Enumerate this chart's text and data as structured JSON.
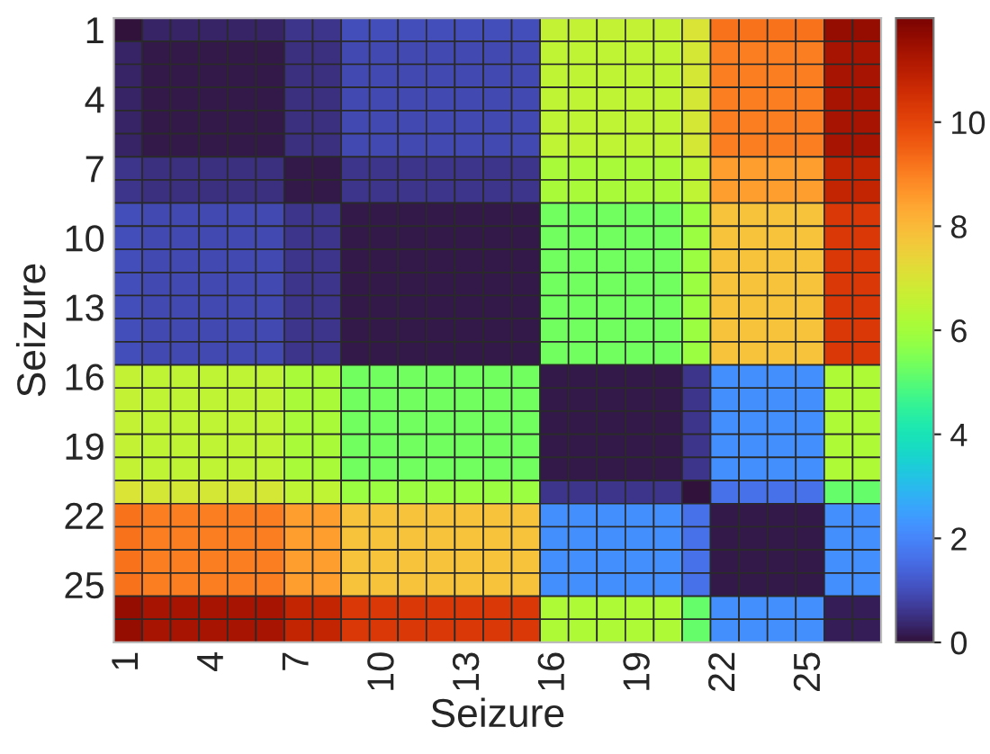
{
  "chart_data": {
    "type": "heatmap",
    "xlabel": "Seizure",
    "ylabel": "Seizure",
    "categories": [
      "1",
      null,
      null,
      "4",
      null,
      null,
      "7",
      null,
      null,
      "10",
      null,
      null,
      "13",
      null,
      null,
      "16",
      null,
      null,
      "19",
      null,
      null,
      "22",
      null,
      null,
      "25",
      null,
      null
    ],
    "y_categories": [
      "1",
      null,
      null,
      "4",
      null,
      null,
      "7",
      null,
      null,
      "10",
      null,
      null,
      "13",
      null,
      null,
      "16",
      null,
      null,
      "19",
      null,
      null,
      "22",
      null,
      null,
      "25",
      null,
      null
    ],
    "cells": [
      [
        0,
        0.3,
        0.3,
        0.3,
        0.3,
        0.3,
        0.6,
        0.6,
        1.0,
        1.0,
        1.0,
        1.0,
        1.0,
        1.0,
        1.0,
        6.6,
        6.6,
        6.6,
        6.6,
        6.6,
        7.0,
        9.2,
        9.2,
        9.2,
        9.2,
        11.6,
        11.6
      ],
      [
        0.3,
        0.1,
        0.1,
        0.1,
        0.1,
        0.1,
        0.5,
        0.5,
        0.9,
        0.9,
        0.9,
        0.9,
        0.9,
        0.9,
        0.9,
        6.5,
        6.5,
        6.5,
        6.5,
        6.5,
        6.9,
        9.0,
        9.0,
        9.0,
        9.0,
        11.3,
        11.3
      ],
      [
        0.3,
        0.1,
        0.1,
        0.1,
        0.1,
        0.1,
        0.5,
        0.5,
        0.9,
        0.9,
        0.9,
        0.9,
        0.9,
        0.9,
        0.9,
        6.5,
        6.5,
        6.5,
        6.5,
        6.5,
        6.9,
        9.0,
        9.0,
        9.0,
        9.0,
        11.3,
        11.3
      ],
      [
        0.3,
        0.1,
        0.1,
        0.1,
        0.1,
        0.1,
        0.5,
        0.5,
        0.9,
        0.9,
        0.9,
        0.9,
        0.9,
        0.9,
        0.9,
        6.5,
        6.5,
        6.5,
        6.5,
        6.5,
        6.9,
        9.0,
        9.0,
        9.0,
        9.0,
        11.3,
        11.3
      ],
      [
        0.3,
        0.1,
        0.1,
        0.1,
        0.1,
        0.1,
        0.5,
        0.5,
        0.9,
        0.9,
        0.9,
        0.9,
        0.9,
        0.9,
        0.9,
        6.5,
        6.5,
        6.5,
        6.5,
        6.5,
        6.9,
        9.0,
        9.0,
        9.0,
        9.0,
        11.3,
        11.3
      ],
      [
        0.3,
        0.1,
        0.1,
        0.1,
        0.1,
        0.1,
        0.5,
        0.5,
        0.9,
        0.9,
        0.9,
        0.9,
        0.9,
        0.9,
        0.9,
        6.5,
        6.5,
        6.5,
        6.5,
        6.5,
        6.9,
        9.0,
        9.0,
        9.0,
        9.0,
        11.3,
        11.3
      ],
      [
        0.6,
        0.5,
        0.5,
        0.5,
        0.5,
        0.5,
        0.1,
        0.1,
        0.6,
        0.6,
        0.6,
        0.6,
        0.6,
        0.6,
        0.6,
        6.1,
        6.1,
        6.1,
        6.1,
        6.1,
        6.5,
        8.5,
        8.5,
        8.5,
        8.5,
        10.8,
        10.8
      ],
      [
        0.6,
        0.5,
        0.5,
        0.5,
        0.5,
        0.5,
        0.1,
        0.1,
        0.6,
        0.6,
        0.6,
        0.6,
        0.6,
        0.6,
        0.6,
        6.1,
        6.1,
        6.1,
        6.1,
        6.1,
        6.5,
        8.5,
        8.5,
        8.5,
        8.5,
        10.8,
        10.8
      ],
      [
        1.0,
        0.9,
        0.9,
        0.9,
        0.9,
        0.9,
        0.6,
        0.6,
        0.1,
        0.1,
        0.1,
        0.1,
        0.1,
        0.1,
        0.1,
        5.3,
        5.3,
        5.3,
        5.3,
        5.3,
        5.9,
        7.8,
        7.8,
        7.8,
        7.8,
        10.3,
        10.3
      ],
      [
        1.0,
        0.9,
        0.9,
        0.9,
        0.9,
        0.9,
        0.6,
        0.6,
        0.1,
        0.1,
        0.1,
        0.1,
        0.1,
        0.1,
        0.1,
        5.3,
        5.3,
        5.3,
        5.3,
        5.3,
        5.9,
        7.8,
        7.8,
        7.8,
        7.8,
        10.3,
        10.3
      ],
      [
        1.0,
        0.9,
        0.9,
        0.9,
        0.9,
        0.9,
        0.6,
        0.6,
        0.1,
        0.1,
        0.1,
        0.1,
        0.1,
        0.1,
        0.1,
        5.3,
        5.3,
        5.3,
        5.3,
        5.3,
        5.9,
        7.8,
        7.8,
        7.8,
        7.8,
        10.3,
        10.3
      ],
      [
        1.0,
        0.9,
        0.9,
        0.9,
        0.9,
        0.9,
        0.6,
        0.6,
        0.1,
        0.1,
        0.1,
        0.1,
        0.1,
        0.1,
        0.1,
        5.3,
        5.3,
        5.3,
        5.3,
        5.3,
        5.9,
        7.8,
        7.8,
        7.8,
        7.8,
        10.3,
        10.3
      ],
      [
        1.0,
        0.9,
        0.9,
        0.9,
        0.9,
        0.9,
        0.6,
        0.6,
        0.1,
        0.1,
        0.1,
        0.1,
        0.1,
        0.1,
        0.1,
        5.3,
        5.3,
        5.3,
        5.3,
        5.3,
        5.9,
        7.8,
        7.8,
        7.8,
        7.8,
        10.3,
        10.3
      ],
      [
        1.0,
        0.9,
        0.9,
        0.9,
        0.9,
        0.9,
        0.6,
        0.6,
        0.1,
        0.1,
        0.1,
        0.1,
        0.1,
        0.1,
        0.1,
        5.3,
        5.3,
        5.3,
        5.3,
        5.3,
        5.9,
        7.8,
        7.8,
        7.8,
        7.8,
        10.3,
        10.3
      ],
      [
        1.0,
        0.9,
        0.9,
        0.9,
        0.9,
        0.9,
        0.6,
        0.6,
        0.1,
        0.1,
        0.1,
        0.1,
        0.1,
        0.1,
        0.1,
        5.3,
        5.3,
        5.3,
        5.3,
        5.3,
        5.9,
        7.8,
        7.8,
        7.8,
        7.8,
        10.3,
        10.3
      ],
      [
        6.6,
        6.5,
        6.5,
        6.5,
        6.5,
        6.5,
        6.1,
        6.1,
        5.3,
        5.3,
        5.3,
        5.3,
        5.3,
        5.3,
        5.3,
        0.1,
        0.1,
        0.1,
        0.1,
        0.1,
        0.6,
        2.2,
        2.2,
        2.2,
        2.2,
        6.2,
        6.2
      ],
      [
        6.6,
        6.5,
        6.5,
        6.5,
        6.5,
        6.5,
        6.1,
        6.1,
        5.3,
        5.3,
        5.3,
        5.3,
        5.3,
        5.3,
        5.3,
        0.1,
        0.1,
        0.1,
        0.1,
        0.1,
        0.6,
        2.2,
        2.2,
        2.2,
        2.2,
        6.2,
        6.2
      ],
      [
        6.6,
        6.5,
        6.5,
        6.5,
        6.5,
        6.5,
        6.1,
        6.1,
        5.3,
        5.3,
        5.3,
        5.3,
        5.3,
        5.3,
        5.3,
        0.1,
        0.1,
        0.1,
        0.1,
        0.1,
        0.6,
        2.2,
        2.2,
        2.2,
        2.2,
        6.2,
        6.2
      ],
      [
        6.6,
        6.5,
        6.5,
        6.5,
        6.5,
        6.5,
        6.1,
        6.1,
        5.3,
        5.3,
        5.3,
        5.3,
        5.3,
        5.3,
        5.3,
        0.1,
        0.1,
        0.1,
        0.1,
        0.1,
        0.6,
        2.2,
        2.2,
        2.2,
        2.2,
        6.2,
        6.2
      ],
      [
        6.6,
        6.5,
        6.5,
        6.5,
        6.5,
        6.5,
        6.1,
        6.1,
        5.3,
        5.3,
        5.3,
        5.3,
        5.3,
        5.3,
        5.3,
        0.1,
        0.1,
        0.1,
        0.1,
        0.1,
        0.6,
        2.2,
        2.2,
        2.2,
        2.2,
        6.2,
        6.2
      ],
      [
        7.0,
        6.9,
        6.9,
        6.9,
        6.9,
        6.9,
        6.5,
        6.5,
        5.9,
        5.9,
        5.9,
        5.9,
        5.9,
        5.9,
        5.9,
        0.6,
        0.6,
        0.6,
        0.6,
        0.6,
        0,
        1.6,
        1.6,
        1.6,
        1.6,
        5.2,
        5.2
      ],
      [
        9.2,
        9.0,
        9.0,
        9.0,
        9.0,
        9.0,
        8.5,
        8.5,
        7.8,
        7.8,
        7.8,
        7.8,
        7.8,
        7.8,
        7.8,
        2.2,
        2.2,
        2.2,
        2.2,
        2.2,
        1.6,
        0.1,
        0.1,
        0.1,
        0.1,
        2.2,
        2.2
      ],
      [
        9.2,
        9.0,
        9.0,
        9.0,
        9.0,
        9.0,
        8.5,
        8.5,
        7.8,
        7.8,
        7.8,
        7.8,
        7.8,
        7.8,
        7.8,
        2.2,
        2.2,
        2.2,
        2.2,
        2.2,
        1.6,
        0.1,
        0.1,
        0.1,
        0.1,
        2.2,
        2.2
      ],
      [
        9.2,
        9.0,
        9.0,
        9.0,
        9.0,
        9.0,
        8.5,
        8.5,
        7.8,
        7.8,
        7.8,
        7.8,
        7.8,
        7.8,
        7.8,
        2.2,
        2.2,
        2.2,
        2.2,
        2.2,
        1.6,
        0.1,
        0.1,
        0.1,
        0.1,
        2.2,
        2.2
      ],
      [
        9.2,
        9.0,
        9.0,
        9.0,
        9.0,
        9.0,
        8.5,
        8.5,
        7.8,
        7.8,
        7.8,
        7.8,
        7.8,
        7.8,
        7.8,
        2.2,
        2.2,
        2.2,
        2.2,
        2.2,
        1.6,
        0.1,
        0.1,
        0.1,
        0.1,
        2.2,
        2.2
      ],
      [
        11.6,
        11.3,
        11.3,
        11.3,
        11.3,
        11.3,
        10.8,
        10.8,
        10.3,
        10.3,
        10.3,
        10.3,
        10.3,
        10.3,
        10.3,
        6.2,
        6.2,
        6.2,
        6.2,
        6.2,
        5.2,
        2.2,
        2.2,
        2.2,
        2.2,
        0.2,
        0.2
      ],
      [
        11.6,
        11.3,
        11.3,
        11.3,
        11.3,
        11.3,
        10.8,
        10.8,
        10.3,
        10.3,
        10.3,
        10.3,
        10.3,
        10.3,
        10.3,
        6.2,
        6.2,
        6.2,
        6.2,
        6.2,
        5.2,
        2.2,
        2.2,
        2.2,
        2.2,
        0.2,
        0.2
      ]
    ],
    "clim": [
      0,
      12
    ],
    "cticks": [
      0,
      2,
      4,
      6,
      8,
      10
    ]
  }
}
